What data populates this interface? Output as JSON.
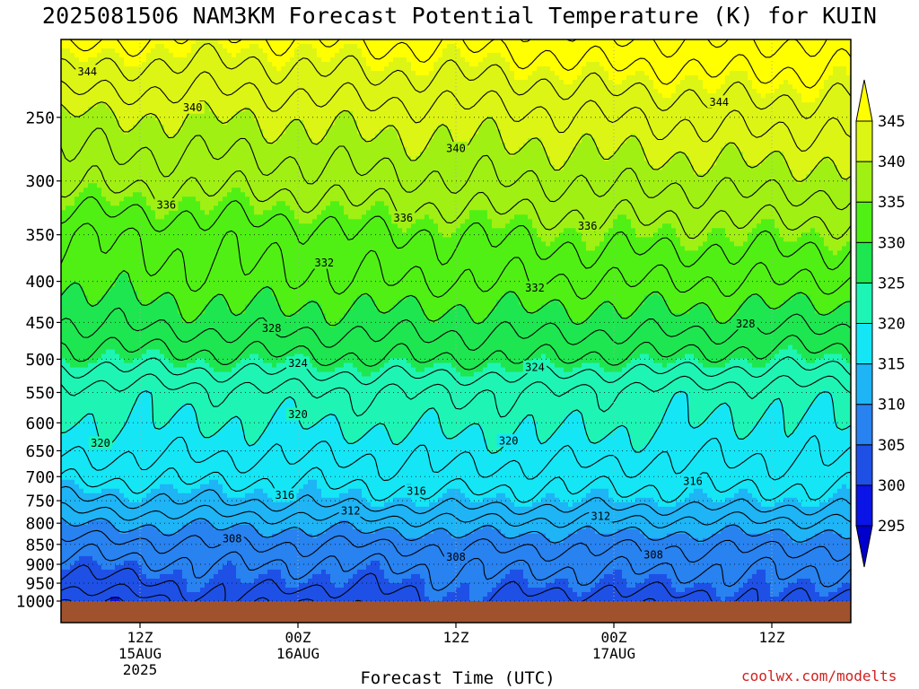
{
  "chart_data": {
    "type": "heatmap",
    "title": "2025081506 NAM3KM Forecast Potential Temperature (K) for KUIN",
    "xlabel": "Forecast Time (UTC)",
    "ylabel": "",
    "x_ticks": [
      {
        "line1": "12Z",
        "line2": "15AUG",
        "line3": "2025",
        "hour": 6
      },
      {
        "line1": "00Z",
        "line2": "16AUG",
        "line3": "",
        "hour": 18
      },
      {
        "line1": "12Z",
        "line2": "",
        "line3": "",
        "hour": 30
      },
      {
        "line1": "00Z",
        "line2": "17AUG",
        "line3": "",
        "hour": 42
      },
      {
        "line1": "12Z",
        "line2": "",
        "line3": "",
        "hour": 54
      }
    ],
    "x_range_hours": [
      0,
      60
    ],
    "y_ticks": [
      250,
      300,
      350,
      400,
      450,
      500,
      550,
      600,
      650,
      700,
      750,
      800,
      850,
      900,
      950,
      1000
    ],
    "y_range_hpa": [
      200,
      1000
    ],
    "y_scale": "log",
    "colorbar": {
      "levels": [
        295,
        300,
        305,
        310,
        315,
        320,
        325,
        330,
        335,
        340,
        345
      ],
      "colors": [
        "#0000cd",
        "#0a14e6",
        "#1e50e6",
        "#2882f0",
        "#1eb4f5",
        "#14e6f5",
        "#1ef5b4",
        "#1ee650",
        "#50f014",
        "#a0f014",
        "#dcf514",
        "#ffff00"
      ],
      "extend": "both"
    },
    "contour_labels": [
      "344",
      "340",
      "340",
      "344",
      "336",
      "336",
      "336",
      "332",
      "332",
      "328",
      "328",
      "324",
      "324",
      "320",
      "320",
      "320",
      "316",
      "316",
      "316",
      "312",
      "312",
      "308",
      "308",
      "308"
    ],
    "profiles": [
      {
        "hour": 0,
        "theta": {
          "200": 347,
          "250": 339.5,
          "300": 336.5,
          "350": 332,
          "400": 330.5,
          "450": 328,
          "500": 325,
          "550": 321,
          "600": 320,
          "650": 318.5,
          "700": 316.5,
          "750": 313.5,
          "800": 310,
          "850": 307,
          "900": 305,
          "950": 303,
          "1000": 300
        }
      },
      {
        "hour": 6,
        "theta": {
          "200": 346,
          "250": 340,
          "300": 336.5,
          "350": 332.5,
          "400": 331,
          "450": 328.5,
          "500": 325,
          "550": 321,
          "600": 320,
          "650": 318.5,
          "700": 316.5,
          "750": 314,
          "800": 310.5,
          "850": 307.5,
          "900": 305.5,
          "950": 303.5,
          "1000": 301
        }
      },
      {
        "hour": 12,
        "theta": {
          "200": 345.5,
          "250": 340,
          "300": 336.5,
          "350": 333,
          "400": 331.5,
          "450": 329,
          "500": 325.5,
          "550": 321.5,
          "600": 320,
          "650": 318.5,
          "700": 316.5,
          "750": 314,
          "800": 310.5,
          "850": 308,
          "900": 306,
          "950": 305,
          "1000": 304
        }
      },
      {
        "hour": 18,
        "theta": {
          "200": 346,
          "250": 340.5,
          "300": 337,
          "350": 333,
          "400": 331.5,
          "450": 329,
          "500": 325.5,
          "550": 321.5,
          "600": 320,
          "650": 318.5,
          "700": 316.5,
          "750": 314.5,
          "800": 311,
          "850": 308,
          "900": 306,
          "950": 304.5,
          "1000": 302
        }
      },
      {
        "hour": 24,
        "theta": {
          "200": 346.5,
          "250": 341,
          "300": 337.5,
          "350": 334,
          "400": 332,
          "450": 329,
          "500": 326,
          "550": 322,
          "600": 320.5,
          "650": 318.5,
          "700": 317,
          "750": 315,
          "800": 311,
          "850": 308,
          "900": 306,
          "950": 304.5,
          "1000": 303
        }
      },
      {
        "hour": 30,
        "theta": {
          "200": 346.5,
          "250": 341,
          "300": 338,
          "350": 334,
          "400": 332,
          "450": 329,
          "500": 326,
          "550": 322,
          "600": 320.5,
          "650": 319,
          "700": 317.5,
          "750": 315,
          "800": 311.5,
          "850": 308.5,
          "900": 306.5,
          "950": 305.5,
          "1000": 304.5
        }
      },
      {
        "hour": 36,
        "theta": {
          "200": 347,
          "250": 341.5,
          "300": 338,
          "350": 334.5,
          "400": 332,
          "450": 329,
          "500": 326,
          "550": 322,
          "600": 320.5,
          "650": 319,
          "700": 317,
          "750": 315,
          "800": 311.5,
          "850": 308.5,
          "900": 306.5,
          "950": 305,
          "1000": 303
        }
      },
      {
        "hour": 42,
        "theta": {
          "200": 348,
          "250": 342,
          "300": 338.5,
          "350": 335,
          "400": 332,
          "450": 329,
          "500": 325.5,
          "550": 321.5,
          "600": 320.5,
          "650": 319,
          "700": 317,
          "750": 315,
          "800": 311.5,
          "850": 308.5,
          "900": 306.5,
          "950": 305,
          "1000": 303
        }
      },
      {
        "hour": 48,
        "theta": {
          "200": 348,
          "250": 342.5,
          "300": 338.5,
          "350": 335,
          "400": 332,
          "450": 329,
          "500": 325.5,
          "550": 321,
          "600": 320,
          "650": 318.5,
          "700": 317,
          "750": 315,
          "800": 311.5,
          "850": 308.5,
          "900": 306.5,
          "950": 305,
          "1000": 303
        }
      },
      {
        "hour": 54,
        "theta": {
          "200": 348.5,
          "250": 343,
          "300": 339,
          "350": 335,
          "400": 332,
          "450": 328.5,
          "500": 325,
          "550": 321,
          "600": 319.5,
          "650": 318.5,
          "700": 317,
          "750": 315,
          "800": 311.5,
          "850": 308.5,
          "900": 306.5,
          "950": 305.5,
          "1000": 304.5
        }
      },
      {
        "hour": 60,
        "theta": {
          "200": 347.5,
          "250": 342.5,
          "300": 339,
          "350": 335,
          "400": 332,
          "450": 328.5,
          "500": 325,
          "550": 321,
          "600": 320,
          "650": 318.5,
          "700": 317,
          "750": 315,
          "800": 311.5,
          "850": 308.5,
          "900": 306.5,
          "950": 305,
          "1000": 303
        }
      }
    ],
    "grid": true,
    "ground_color": "#a0522d"
  },
  "credit": "coolwx.com/modelts"
}
